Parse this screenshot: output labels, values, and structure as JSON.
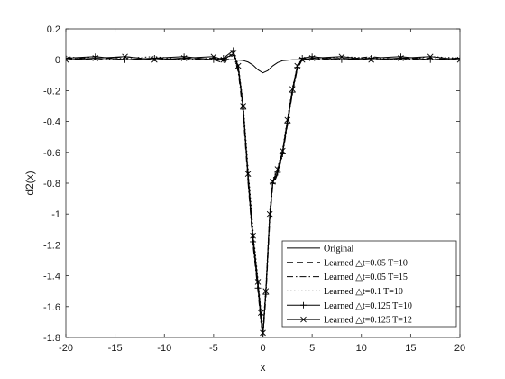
{
  "chart_data": {
    "type": "line",
    "title": "",
    "xlabel": "x",
    "ylabel": "d2(x)",
    "xlim": [
      -20,
      20
    ],
    "ylim": [
      -1.8,
      0.2
    ],
    "x_ticks": [
      -20,
      -15,
      -10,
      -5,
      0,
      5,
      10,
      15,
      20
    ],
    "y_ticks": [
      0.2,
      0,
      -0.2,
      -0.4,
      -0.6,
      -0.8,
      -1,
      -1.2,
      -1.4,
      -1.6,
      -1.8
    ],
    "x_tick_labels": [
      "-20",
      "-15",
      "-10",
      "-5",
      "0",
      "5",
      "10",
      "15",
      "20"
    ],
    "y_tick_labels": [
      "0.2",
      "0",
      "-0.2",
      "-0.4",
      "-0.6",
      "-0.8",
      "-1",
      "-1.2",
      "-1.4",
      "-1.6",
      "-1.8"
    ],
    "grid": false,
    "legend_position": "bottom-right",
    "series": [
      {
        "name": "Original",
        "style": "solid",
        "marker": "none",
        "x": [
          -20,
          -10,
          -5,
          -3,
          -2,
          -1.5,
          -1,
          -0.5,
          0,
          0.5,
          1,
          1.5,
          2,
          3,
          5,
          10,
          20
        ],
        "y": [
          0,
          0,
          0,
          0,
          -0.005,
          -0.015,
          -0.035,
          -0.065,
          -0.085,
          -0.07,
          -0.04,
          -0.018,
          -0.006,
          0,
          0,
          0,
          0
        ]
      },
      {
        "name": "Learned △t=0.05 T=10",
        "style": "dashed",
        "marker": "none",
        "x": [
          -20,
          -17,
          -14,
          -11,
          -8,
          -5,
          -4,
          -3,
          -2.5,
          -2,
          -1.5,
          -1,
          -0.5,
          -0.2,
          0,
          0.3,
          0.7,
          1,
          1.5,
          2,
          2.5,
          3,
          3.5,
          4,
          5,
          8,
          11,
          14,
          17,
          20
        ],
        "y": [
          0.01,
          0.0,
          0.02,
          0.0,
          0.01,
          0.0,
          -0.02,
          0.03,
          -0.05,
          -0.3,
          -0.75,
          -1.15,
          -1.45,
          -1.65,
          -1.78,
          -1.5,
          -1.0,
          -0.8,
          -0.72,
          -0.6,
          -0.4,
          -0.2,
          -0.05,
          0.01,
          0.0,
          0.01,
          0.0,
          0.01,
          0.0,
          0.01
        ]
      },
      {
        "name": "Learned △t=0.05 T=15",
        "style": "dashdot",
        "marker": "none",
        "x": [
          -20,
          -17,
          -14,
          -11,
          -8,
          -5,
          -4,
          -3,
          -2.5,
          -2,
          -1.5,
          -1,
          -0.5,
          -0.2,
          0,
          0.3,
          0.7,
          1,
          1.5,
          2,
          2.5,
          3,
          3.5,
          4,
          5,
          8,
          11,
          14,
          17,
          20
        ],
        "y": [
          0.0,
          0.02,
          0.0,
          0.01,
          0.0,
          0.01,
          -0.01,
          0.04,
          -0.08,
          -0.35,
          -0.8,
          -1.2,
          -1.5,
          -1.7,
          -1.8,
          -1.55,
          -1.05,
          -0.82,
          -0.74,
          -0.62,
          -0.42,
          -0.22,
          -0.06,
          0.0,
          0.01,
          0.0,
          0.02,
          0.0,
          0.01,
          0.0
        ]
      },
      {
        "name": "Learned △t=0.1 T=10",
        "style": "dotted",
        "marker": "none",
        "x": [
          -20,
          -17,
          -14,
          -11,
          -8,
          -5,
          -4,
          -3,
          -2.5,
          -2,
          -1.5,
          -1,
          -0.5,
          -0.2,
          0,
          0.3,
          0.7,
          1,
          1.5,
          2,
          2.5,
          3,
          3.5,
          4,
          5,
          8,
          11,
          14,
          17,
          20
        ],
        "y": [
          0.02,
          0.0,
          0.01,
          0.02,
          0.0,
          0.01,
          0.0,
          0.05,
          -0.03,
          -0.28,
          -0.7,
          -1.1,
          -1.42,
          -1.62,
          -1.75,
          -1.48,
          -0.98,
          -0.78,
          -0.7,
          -0.58,
          -0.38,
          -0.18,
          -0.04,
          0.01,
          0.0,
          0.02,
          0.01,
          0.0,
          0.02,
          0.01
        ]
      },
      {
        "name": "Learned △t=0.125 T=10",
        "style": "solid",
        "marker": "plus",
        "x": [
          -20,
          -17,
          -14,
          -11,
          -8,
          -5,
          -4,
          -3,
          -2.5,
          -2,
          -1.5,
          -1,
          -0.5,
          -0.2,
          0,
          0.3,
          0.7,
          1,
          1.5,
          2,
          2.5,
          3,
          3.5,
          4,
          5,
          8,
          11,
          14,
          17,
          20
        ],
        "y": [
          0.01,
          0.02,
          0.0,
          0.01,
          0.02,
          0.0,
          0.01,
          0.06,
          -0.06,
          -0.32,
          -0.78,
          -1.18,
          -1.48,
          -1.68,
          -1.8,
          -1.52,
          -1.02,
          -0.8,
          -0.73,
          -0.61,
          -0.41,
          -0.21,
          -0.05,
          0.01,
          0.02,
          0.0,
          0.01,
          0.02,
          0.0,
          0.01
        ]
      },
      {
        "name": "Learned △t=0.125 T=12",
        "style": "solid",
        "marker": "x",
        "x": [
          -20,
          -17,
          -14,
          -11,
          -8,
          -5,
          -4,
          -3,
          -2.5,
          -2,
          -1.5,
          -1,
          -0.5,
          -0.2,
          0,
          0.3,
          0.7,
          1,
          1.5,
          2,
          2.5,
          3,
          3.5,
          4,
          5,
          8,
          11,
          14,
          17,
          20
        ],
        "y": [
          0.0,
          0.01,
          0.02,
          0.0,
          0.01,
          0.02,
          0.0,
          0.04,
          -0.04,
          -0.3,
          -0.74,
          -1.14,
          -1.44,
          -1.64,
          -1.77,
          -1.5,
          -1.0,
          -0.79,
          -0.71,
          -0.59,
          -0.39,
          -0.19,
          -0.04,
          0.0,
          0.01,
          0.02,
          0.0,
          0.01,
          0.02,
          0.0
        ]
      }
    ]
  }
}
